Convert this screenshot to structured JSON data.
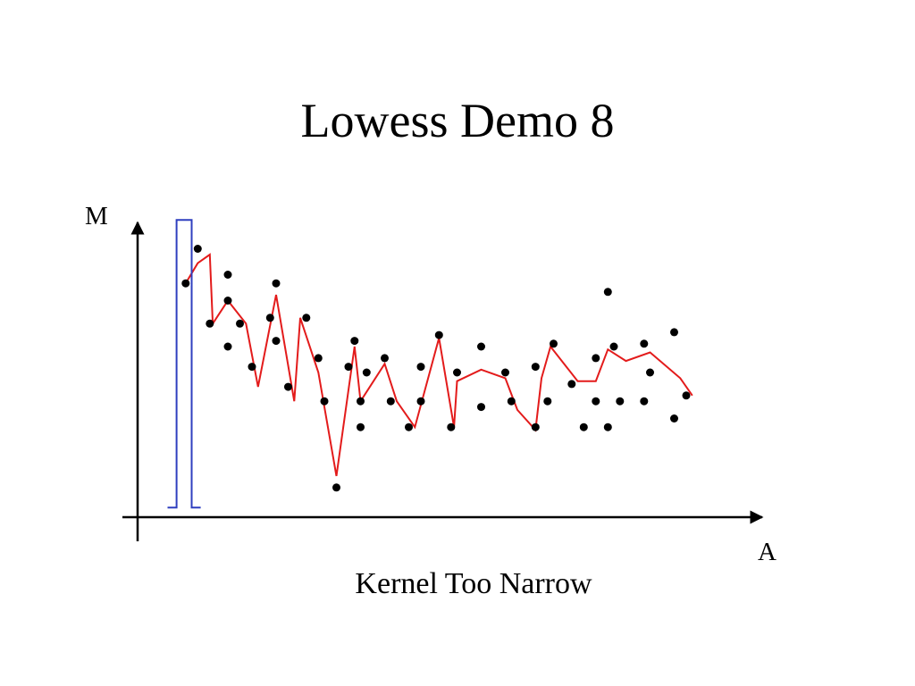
{
  "slide": {
    "title": "Lowess Demo 8",
    "caption": "Kernel Too Narrow"
  },
  "colors": {
    "fit_line": "#e31b1b",
    "kernel": "#2f3fbf",
    "points": "#000000",
    "axes": "#000000"
  },
  "chart_data": {
    "type": "scatter",
    "title": "",
    "xlabel": "A",
    "ylabel": "M",
    "axes_have_ticks": false,
    "grid": false,
    "xlim": [
      0,
      100
    ],
    "ylim": [
      0,
      100
    ],
    "points": [
      [
        5,
        81
      ],
      [
        7,
        93
      ],
      [
        9,
        67
      ],
      [
        12,
        84
      ],
      [
        12,
        75
      ],
      [
        12,
        59
      ],
      [
        14,
        67
      ],
      [
        16,
        52
      ],
      [
        19,
        69
      ],
      [
        20,
        81
      ],
      [
        20,
        61
      ],
      [
        22,
        45
      ],
      [
        25,
        69
      ],
      [
        27,
        55
      ],
      [
        28,
        40
      ],
      [
        30,
        10
      ],
      [
        32,
        52
      ],
      [
        33,
        61
      ],
      [
        34,
        31
      ],
      [
        34,
        40
      ],
      [
        35,
        50
      ],
      [
        38,
        55
      ],
      [
        39,
        40
      ],
      [
        42,
        31
      ],
      [
        44,
        40
      ],
      [
        44,
        52
      ],
      [
        47,
        63
      ],
      [
        49,
        31
      ],
      [
        50,
        50
      ],
      [
        54,
        59
      ],
      [
        54,
        38
      ],
      [
        58,
        50
      ],
      [
        59,
        40
      ],
      [
        63,
        31
      ],
      [
        63,
        52
      ],
      [
        65,
        40
      ],
      [
        66,
        60
      ],
      [
        69,
        46
      ],
      [
        71,
        31
      ],
      [
        73,
        55
      ],
      [
        73,
        40
      ],
      [
        75,
        31
      ],
      [
        75,
        78
      ],
      [
        76,
        59
      ],
      [
        77,
        40
      ],
      [
        81,
        40
      ],
      [
        81,
        60
      ],
      [
        82,
        50
      ],
      [
        86,
        64
      ],
      [
        86,
        34
      ],
      [
        88,
        42
      ]
    ],
    "series": [
      {
        "type": "line",
        "x": [
          5,
          7,
          9,
          9.5,
          12,
          15,
          17,
          20,
          23,
          24,
          27,
          30,
          33,
          34,
          38,
          40,
          43,
          47,
          49.5,
          50,
          54,
          58,
          60,
          63,
          64,
          65.5,
          70,
          73,
          75,
          78,
          82,
          87,
          89
        ],
        "y": [
          81,
          88,
          91,
          67,
          75,
          67,
          45,
          77,
          40,
          69,
          50,
          14,
          59,
          40,
          53,
          40,
          31,
          62,
          31,
          47,
          51,
          48,
          37,
          30,
          48,
          59,
          47,
          47,
          58,
          54,
          57,
          48,
          42
        ]
      },
      {
        "type": "kernel",
        "x": [
          2,
          3.5,
          3.5,
          6,
          6,
          7.5
        ],
        "y": [
          3,
          3,
          103,
          103,
          3,
          3
        ]
      }
    ]
  }
}
